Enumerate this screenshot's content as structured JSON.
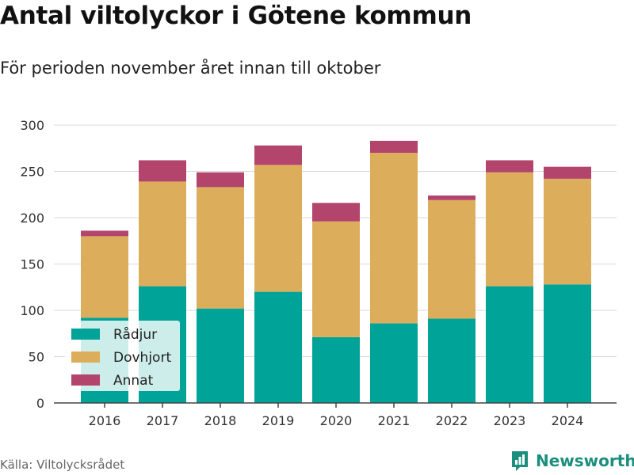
{
  "chart_data": {
    "type": "bar",
    "stacked": true,
    "title": "Antal viltolyckor i Götene kommun",
    "subtitle": "För perioden november året innan till oktober",
    "xlabel": "",
    "ylabel": "",
    "categories": [
      "2016",
      "2017",
      "2018",
      "2019",
      "2020",
      "2021",
      "2022",
      "2023",
      "2024"
    ],
    "series": [
      {
        "name": "Rådjur",
        "color": "#00a398",
        "values": [
          92,
          126,
          102,
          120,
          71,
          86,
          91,
          126,
          128
        ]
      },
      {
        "name": "Dovhjort",
        "color": "#dcae5c",
        "values": [
          88,
          113,
          131,
          137,
          125,
          184,
          128,
          123,
          114
        ]
      },
      {
        "name": "Annat",
        "color": "#b3456c",
        "values": [
          6,
          23,
          16,
          21,
          20,
          13,
          5,
          13,
          13
        ]
      }
    ],
    "ylim": [
      0,
      300
    ],
    "yticks": [
      "0",
      "50",
      "100",
      "150",
      "200",
      "250",
      "300"
    ],
    "grid": true,
    "legend_position": "bottom-left",
    "source": "Källa: Viltolycksrådet",
    "brand": "Newsworthy"
  }
}
